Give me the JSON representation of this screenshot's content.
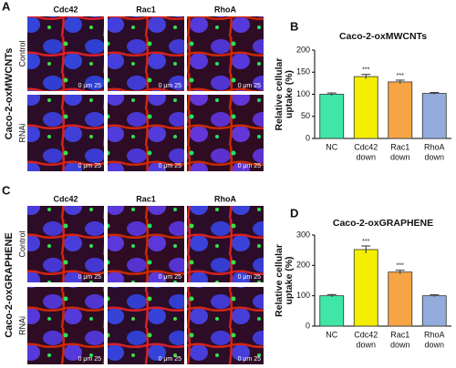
{
  "panels": [
    {
      "label": "A",
      "title": "Caco-2-oxMWCNTs",
      "columns": [
        "Cdc42",
        "Rac1",
        "RhoA"
      ],
      "rows": [
        "Control",
        "RNAi"
      ],
      "scale_bar": "0 μm 25"
    },
    {
      "label": "C",
      "title": "Caco-2-oxGRAPHENE",
      "columns": [
        "Cdc42",
        "Rac1",
        "RhoA"
      ],
      "rows": [
        "Control",
        "RNAi"
      ],
      "scale_bar": "0 μm 25"
    }
  ],
  "chart_data": [
    {
      "panel_label": "B",
      "type": "bar",
      "title": "Caco-2-oxMWCNTs",
      "ylabel": [
        "Relative cellular",
        "uptake (%)"
      ],
      "categories": [
        [
          "NC"
        ],
        [
          "Cdc42",
          "down"
        ],
        [
          "Rac1",
          "down"
        ],
        [
          "RhoA",
          "down"
        ]
      ],
      "values": [
        100,
        140,
        128,
        102
      ],
      "errors": [
        3,
        5,
        4,
        2
      ],
      "significance": [
        null,
        "***",
        "***",
        null
      ],
      "colors": [
        "#3fe6a6",
        "#f4ee00",
        "#f6a445",
        "#93acdc"
      ],
      "ylim": [
        0,
        200
      ],
      "yticks": [
        0,
        50,
        100,
        150,
        200
      ]
    },
    {
      "panel_label": "D",
      "type": "bar",
      "title": "Caco-2-oxGRAPHENE",
      "ylabel": [
        "Relative cellular",
        "uptake (%)"
      ],
      "categories": [
        [
          "NC"
        ],
        [
          "Cdc42",
          "down"
        ],
        [
          "Rac1",
          "down"
        ],
        [
          "RhoA",
          "down"
        ]
      ],
      "values": [
        100,
        252,
        178,
        100
      ],
      "errors": [
        4,
        12,
        6,
        3
      ],
      "significance": [
        null,
        "***",
        "***",
        null
      ],
      "colors": [
        "#3fe6a6",
        "#f4ee00",
        "#f6a445",
        "#93acdc"
      ],
      "ylim": [
        0,
        300
      ],
      "yticks": [
        0,
        100,
        200,
        300
      ]
    }
  ]
}
